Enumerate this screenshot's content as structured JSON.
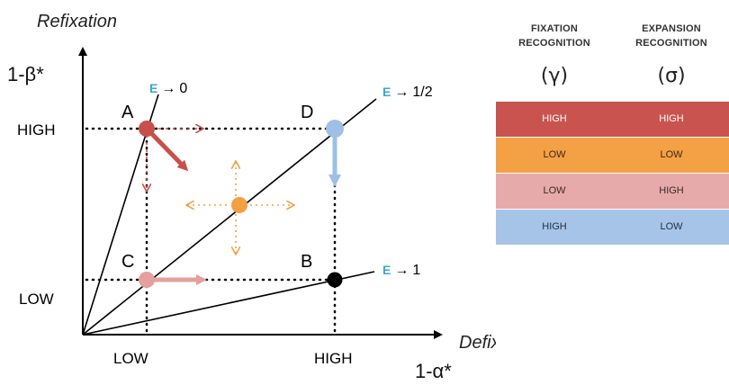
{
  "axes": {
    "y_title": "Refixation",
    "y_symbol": "1-β*",
    "x_title": "Defixation",
    "x_symbol": "1-α*",
    "y_high": "HIGH",
    "y_low": "LOW",
    "x_low": "LOW",
    "x_high": "HIGH"
  },
  "lines": [
    {
      "prefix": "E",
      "arrow": "→",
      "value": "0"
    },
    {
      "prefix": "E",
      "arrow": "→",
      "value": "1/2"
    },
    {
      "prefix": "E",
      "arrow": "→",
      "value": "1"
    }
  ],
  "points": [
    {
      "label": "A",
      "color": "#c8504a"
    },
    {
      "label": "B",
      "color": "#000000"
    },
    {
      "label": "C",
      "color": "#e3a09c"
    },
    {
      "label": "D",
      "color": "#9dc0e6"
    }
  ],
  "center_point_color": "#f4a041",
  "legend": {
    "columns": [
      {
        "line1": "FIXATION",
        "line2": "RECOGNITION",
        "symbol": "(γ)"
      },
      {
        "line1": "EXPANSION",
        "line2": "RECOGNITION",
        "symbol": "(σ)"
      }
    ],
    "rows": [
      {
        "fixation": "HIGH",
        "expansion": "HIGH",
        "color": "#c9544f",
        "text_color": "#ffffff"
      },
      {
        "fixation": "LOW",
        "expansion": "LOW",
        "color": "#f4a045",
        "text_color": "#3a2a10"
      },
      {
        "fixation": "LOW",
        "expansion": "HIGH",
        "color": "#e6aaaa",
        "text_color": "#3a2a2a"
      },
      {
        "fixation": "HIGH",
        "expansion": "LOW",
        "color": "#a6c3e8",
        "text_color": "#1f2f45"
      }
    ]
  },
  "e_color": "#3aa6d6"
}
